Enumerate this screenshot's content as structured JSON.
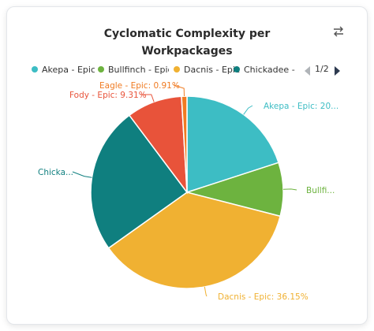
{
  "chart_data": {
    "type": "pie",
    "title": "Cyclomatic Complexity per Workpackages",
    "title_lines": [
      "Cyclomatic Complexity per",
      "Workpackages"
    ],
    "slices": [
      {
        "name": "Akepa - Epic",
        "value": 20.0,
        "label": "Akepa - Epic: 20...",
        "color": "#3dbdc4"
      },
      {
        "name": "Bullfinch - Epic",
        "value": 9.0,
        "label": "Bullfi...",
        "color": "#6db33f"
      },
      {
        "name": "Dacnis - Epic",
        "value": 36.15,
        "label": "Dacnis - Epic: 36.15%",
        "color": "#f0b132"
      },
      {
        "name": "Chickadee - Epic",
        "value": 24.63,
        "label": "Chicka...",
        "color": "#0f7f7f"
      },
      {
        "name": "Fody - Epic",
        "value": 9.31,
        "label": "Fody - Epic: 9.31%",
        "color": "#e8533a"
      },
      {
        "name": "Eagle - Epic",
        "value": 0.91,
        "label": "Eagle - Epic: 0.91%",
        "color": "#f07b22"
      }
    ],
    "legend": {
      "placement": "top",
      "items": [
        {
          "label": "Akepa - Epic",
          "color": "#3dbdc4"
        },
        {
          "label": "Bullfinch - Epic",
          "color": "#6db33f"
        },
        {
          "label": "Dacnis - Epic",
          "color": "#f0b132"
        },
        {
          "label": "Chickadee - Ep",
          "color": "#0f7f7f"
        }
      ],
      "page": "1/2"
    }
  }
}
